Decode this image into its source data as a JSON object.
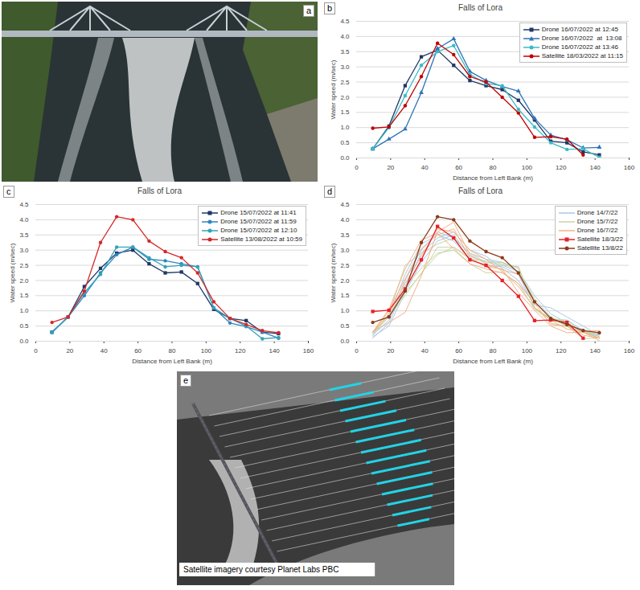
{
  "chart_data": [
    {
      "type": "line",
      "panel_label": "b",
      "title": "Falls of Lora",
      "x_label": "Distance from Left Bank (m)",
      "y_label": "Water speed (m/sec)",
      "xlim": [
        0,
        160
      ],
      "xticks": [
        0,
        20,
        40,
        60,
        80,
        100,
        120,
        140,
        160
      ],
      "ylim": [
        0,
        4.5
      ],
      "yticks": [
        {
          "value": 0,
          "label": "0.0"
        },
        {
          "value": 0.5,
          "label": "0.5"
        },
        {
          "value": 1,
          "label": "1.0"
        },
        {
          "value": 1.5,
          "label": "1.5"
        },
        {
          "value": 2,
          "label": "2.0"
        },
        {
          "value": 2.5,
          "label": "2.5"
        },
        {
          "value": 3,
          "label": "3.0"
        },
        {
          "value": 3.5,
          "label": "3.5"
        },
        {
          "value": 4,
          "label": "4.0"
        },
        {
          "value": 4.5,
          "label": "4.5"
        }
      ],
      "grid": true,
      "legend": "top-right",
      "x": [
        9.5,
        19,
        28.5,
        38,
        47.5,
        57,
        66.5,
        76,
        85.5,
        95,
        104.5,
        114,
        123.5,
        133,
        142.5
      ],
      "series": [
        {
          "name": "Drone 16/07/2022 at 12:45",
          "color": "#203864",
          "marker": "square",
          "values": [
            0.3,
            1.05,
            2.38,
            3.33,
            3.55,
            3.05,
            2.55,
            2.38,
            2.25,
            1.9,
            1.25,
            0.55,
            0.5,
            0.2,
            0.1
          ]
        },
        {
          "name": "Drone 16/07/2022  at  13:08",
          "color": "#2e75b6",
          "marker": "triangle",
          "values": [
            0.3,
            0.62,
            0.95,
            2.15,
            3.6,
            3.92,
            2.85,
            2.55,
            2.35,
            2.2,
            1.3,
            0.75,
            0.6,
            0.33,
            0.35
          ]
        },
        {
          "name": "Drone 16/07/2022 at 13:46",
          "color": "#38bcc8",
          "marker": "circle",
          "values": [
            0.3,
            1.0,
            2.05,
            3.05,
            3.5,
            3.7,
            2.75,
            2.45,
            2.38,
            1.6,
            1.02,
            0.5,
            0.28,
            0.3,
            0.02
          ]
        },
        {
          "name": "Satellite 18/03/2022 at 11:15",
          "color": "#c00000",
          "marker": "circle",
          "values": [
            0.98,
            1.02,
            1.72,
            2.68,
            3.78,
            3.4,
            2.68,
            2.5,
            2.0,
            1.48,
            0.68,
            0.7,
            0.62,
            0.1,
            null
          ]
        }
      ]
    },
    {
      "type": "line",
      "panel_label": "c",
      "title": "Falls of Lora",
      "x_label": "Distance from Left Bank (m)",
      "y_label": "Water speed (m/sec)",
      "xlim": [
        0,
        160
      ],
      "xticks": [
        0,
        20,
        40,
        60,
        80,
        100,
        120,
        140,
        160
      ],
      "ylim": [
        0,
        4.5
      ],
      "yticks": [
        {
          "value": 0,
          "label": "0.0"
        },
        {
          "value": 0.5,
          "label": "0.5"
        },
        {
          "value": 1,
          "label": "1.0"
        },
        {
          "value": 1.5,
          "label": "1.5"
        },
        {
          "value": 2,
          "label": "2.0"
        },
        {
          "value": 2.5,
          "label": "2.5"
        },
        {
          "value": 3,
          "label": "3.0"
        },
        {
          "value": 3.5,
          "label": "3.5"
        },
        {
          "value": 4,
          "label": "4.0"
        },
        {
          "value": 4.5,
          "label": "4.5"
        }
      ],
      "grid": true,
      "legend": "top-right",
      "x": [
        9.5,
        19,
        28.5,
        38,
        47.5,
        57,
        66.5,
        76,
        85.5,
        95,
        104.5,
        114,
        123.5,
        133,
        142.5
      ],
      "series": [
        {
          "name": "Drone 15/07/2022 at 11:41",
          "color": "#1f3864",
          "marker": "square",
          "values": [
            0.3,
            0.8,
            1.8,
            2.4,
            2.9,
            3.0,
            2.55,
            2.25,
            2.28,
            1.9,
            1.05,
            0.75,
            0.68,
            0.3,
            0.25
          ]
        },
        {
          "name": "Drone 15/07/2022 at 11:59",
          "color": "#2e86c1",
          "marker": "circle",
          "values": [
            0.3,
            0.8,
            1.5,
            2.25,
            2.85,
            3.1,
            2.7,
            2.65,
            2.55,
            2.45,
            1.1,
            0.6,
            0.48,
            0.3,
            0.1
          ]
        },
        {
          "name": "Drone 15/07/2022 at 12:10",
          "color": "#35a3b8",
          "marker": "circle",
          "values": [
            0.28,
            0.8,
            1.6,
            2.2,
            3.1,
            3.1,
            2.75,
            2.45,
            2.5,
            2.45,
            1.1,
            0.75,
            0.5,
            0.08,
            0.12
          ]
        },
        {
          "name": "Satellite 13/08/2022 at 10:59",
          "color": "#d62728",
          "marker": "circle",
          "values": [
            0.62,
            0.8,
            1.65,
            3.25,
            4.1,
            4.0,
            3.3,
            2.95,
            2.75,
            2.25,
            1.3,
            0.75,
            0.55,
            0.35,
            0.28
          ]
        }
      ]
    },
    {
      "type": "line",
      "panel_label": "d",
      "title": "Falls of Lora",
      "x_label": "Distance from Left Bank (m)",
      "y_label": "Water speed (m/sec)",
      "xlim": [
        0,
        160
      ],
      "xticks": [
        0,
        20,
        40,
        60,
        80,
        100,
        120,
        140,
        160
      ],
      "ylim": [
        0,
        4.5
      ],
      "yticks": [
        {
          "value": 0,
          "label": "0.0"
        },
        {
          "value": 0.5,
          "label": "0.5"
        },
        {
          "value": 1,
          "label": "1.0"
        },
        {
          "value": 1.5,
          "label": "1.5"
        },
        {
          "value": 2,
          "label": "2.0"
        },
        {
          "value": 2.5,
          "label": "2.5"
        },
        {
          "value": 3,
          "label": "3.0"
        },
        {
          "value": 3.5,
          "label": "3.5"
        },
        {
          "value": 4,
          "label": "4.0"
        },
        {
          "value": 4.5,
          "label": "4.5"
        }
      ],
      "grid": true,
      "legend": "top-right",
      "x": [
        9.5,
        19,
        28.5,
        38,
        47.5,
        57,
        66.5,
        76,
        85.5,
        95,
        104.5,
        114,
        123.5,
        133,
        142.5
      ],
      "series": [
        {
          "name": "Drone 14/7/22",
          "color": "#a9c8e8",
          "runs": [
            [
              0.15,
              0.5,
              1.6,
              2.6,
              3.3,
              3.5,
              2.8,
              2.6,
              2.5,
              2.3,
              1.5,
              0.9,
              0.6,
              0.3,
              0.2
            ],
            [
              0.2,
              0.7,
              2.0,
              3.0,
              3.6,
              3.4,
              2.9,
              2.7,
              2.6,
              2.4,
              1.3,
              0.8,
              0.5,
              0.4,
              0.15
            ],
            [
              0.1,
              0.6,
              1.8,
              2.9,
              3.4,
              3.6,
              3.0,
              2.8,
              2.4,
              2.0,
              1.2,
              1.1,
              0.8,
              0.5,
              0.2
            ],
            [
              0.25,
              0.8,
              2.2,
              3.2,
              3.5,
              3.3,
              2.7,
              2.5,
              2.45,
              2.2,
              1.1,
              0.7,
              0.7,
              0.35,
              0.1
            ]
          ]
        },
        {
          "name": "Drone 15/7/22",
          "color": "#c9d6a3",
          "runs": [
            [
              0.3,
              0.8,
              1.8,
              2.4,
              2.9,
              3.0,
              2.55,
              2.25,
              2.28,
              1.9,
              1.05,
              0.75,
              0.68,
              0.3,
              0.25
            ],
            [
              0.3,
              0.8,
              1.5,
              2.25,
              2.85,
              3.1,
              2.7,
              2.65,
              2.55,
              2.45,
              1.1,
              0.6,
              0.48,
              0.3,
              0.1
            ],
            [
              0.28,
              0.8,
              1.6,
              2.2,
              3.1,
              3.1,
              2.75,
              2.45,
              2.5,
              2.45,
              1.1,
              0.75,
              0.5,
              0.08,
              0.12
            ],
            [
              0.2,
              0.9,
              2.5,
              2.9,
              3.2,
              3.4,
              2.9,
              2.6,
              2.6,
              2.3,
              1.4,
              0.8,
              0.5,
              0.3,
              0.15
            ]
          ]
        },
        {
          "name": "Drone 16/7/22",
          "color": "#f4b183",
          "runs": [
            [
              0.3,
              1.05,
              2.38,
              3.33,
              3.55,
              3.05,
              2.55,
              2.38,
              2.25,
              1.9,
              1.25,
              0.55,
              0.5,
              0.2,
              0.1
            ],
            [
              0.3,
              0.62,
              0.95,
              2.15,
              3.6,
              3.92,
              2.85,
              2.55,
              2.35,
              2.2,
              1.3,
              0.75,
              0.6,
              0.33,
              0.35
            ],
            [
              0.3,
              1.0,
              2.05,
              3.05,
              3.5,
              3.7,
              2.75,
              2.45,
              2.38,
              1.6,
              1.02,
              0.5,
              0.28,
              0.3,
              0.02
            ],
            [
              0.3,
              0.9,
              1.9,
              2.8,
              3.7,
              3.6,
              3.0,
              2.7,
              2.3,
              1.8,
              1.1,
              0.7,
              0.4,
              0.3,
              0.1
            ]
          ]
        },
        {
          "name": "Satellite 18/3/22",
          "color": "#e8202a",
          "marker": "square",
          "values": [
            0.98,
            1.02,
            1.72,
            2.68,
            3.78,
            3.4,
            2.68,
            2.5,
            2.0,
            1.48,
            0.68,
            0.7,
            0.62,
            0.1,
            null
          ]
        },
        {
          "name": "Satellite 13/8/22",
          "color": "#8b3a1a",
          "marker": "circle",
          "values": [
            0.62,
            0.8,
            1.65,
            3.25,
            4.1,
            4.0,
            3.3,
            2.95,
            2.75,
            2.25,
            1.3,
            0.75,
            0.55,
            0.35,
            0.28
          ]
        }
      ]
    }
  ],
  "images": [
    {
      "panel_label": "a"
    },
    {
      "panel_label": "e",
      "caption": "Satellite imagery courtesy Planet Labs PBC"
    }
  ]
}
